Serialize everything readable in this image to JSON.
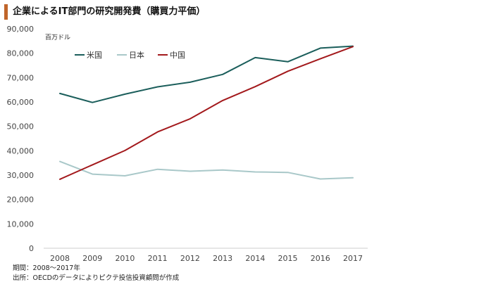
{
  "title": "企業によるIT部門の研究開発費（購買力平価）",
  "notes": {
    "period": "期間：2008～2017年",
    "source": "出所：OECDのデータによりピクテ投信投資顧問が作成"
  },
  "colors": {
    "accent": "#c0652a",
    "us": "#1b5e5b",
    "japan": "#a9c8c9",
    "china": "#a3191c",
    "axis": "#cccccc"
  },
  "chart_data": {
    "type": "line",
    "unit_label": "百万ドル",
    "x": [
      "2008",
      "2009",
      "2010",
      "2011",
      "2012",
      "2013",
      "2014",
      "2015",
      "2016",
      "2017"
    ],
    "ylim": [
      0,
      90000
    ],
    "yticks": [
      0,
      10000,
      20000,
      30000,
      40000,
      50000,
      60000,
      70000,
      80000,
      90000
    ],
    "ytick_labels": [
      "0",
      "10,000",
      "20,000",
      "30,000",
      "40,000",
      "50,000",
      "60,000",
      "70,000",
      "80,000",
      "90,000"
    ],
    "grid": false,
    "legend": "top-left",
    "series": [
      {
        "name": "米国",
        "color": "#1b5e5b",
        "values": [
          63500,
          59800,
          63200,
          66200,
          68100,
          71300,
          78200,
          76500,
          82100,
          82900
        ]
      },
      {
        "name": "日本",
        "color": "#a9c8c9",
        "values": [
          35600,
          30400,
          29700,
          32400,
          31600,
          32100,
          31300,
          31100,
          28400,
          28900
        ]
      },
      {
        "name": "中国",
        "color": "#a3191c",
        "values": [
          28300,
          34200,
          40100,
          47700,
          53100,
          60600,
          66300,
          72600,
          77700,
          82700
        ]
      }
    ]
  }
}
